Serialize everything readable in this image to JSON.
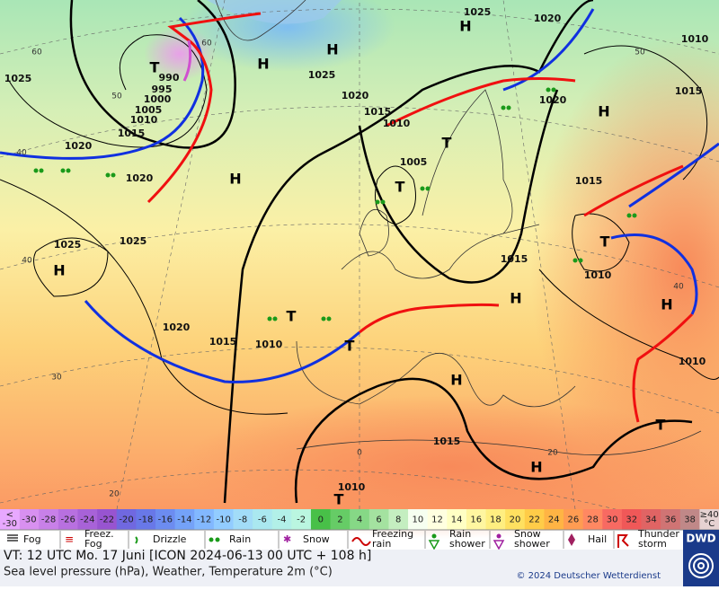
{
  "map": {
    "isobar_labels": [
      "1025",
      "990",
      "995",
      "1000",
      "1005",
      "1010",
      "1015",
      "1020",
      "1020",
      "1025",
      "1025",
      "1025",
      "1020",
      "1015",
      "1010",
      "1005",
      "1025",
      "1020",
      "1010",
      "1015",
      "1020",
      "1015",
      "1015",
      "1010",
      "1020",
      "1015",
      "1010",
      "1010",
      "1015",
      "1010"
    ],
    "grid_labels": [
      "60",
      "50",
      "40",
      "40",
      "30",
      "20",
      "0",
      "20",
      "40",
      "50",
      "60"
    ],
    "pressure_centers": [
      "H",
      "T",
      "H",
      "H",
      "H",
      "T",
      "T",
      "H",
      "T",
      "T",
      "H",
      "H",
      "H",
      "T",
      "H",
      "H",
      "T",
      "T"
    ]
  },
  "color_scale": {
    "low": [
      "<",
      "-30"
    ],
    "high": [
      "≥40",
      "°C"
    ],
    "low_color": "#e8a8ff",
    "high_color": "#e6d2d2",
    "steps": [
      {
        "label": "-30",
        "color": "#d890f0"
      },
      {
        "label": "-28",
        "color": "#c880e8"
      },
      {
        "label": "-26",
        "color": "#b870e0"
      },
      {
        "label": "-24",
        "color": "#a862d8"
      },
      {
        "label": "-22",
        "color": "#9854d0"
      },
      {
        "label": "-20",
        "color": "#7068e0"
      },
      {
        "label": "-18",
        "color": "#6878e8"
      },
      {
        "label": "-16",
        "color": "#6c8cf0"
      },
      {
        "label": "-14",
        "color": "#74a2f8"
      },
      {
        "label": "-12",
        "color": "#82b8ff"
      },
      {
        "label": "-10",
        "color": "#92ccff"
      },
      {
        "label": "-8",
        "color": "#a2dcf8"
      },
      {
        "label": "-6",
        "color": "#aae8f0"
      },
      {
        "label": "-4",
        "color": "#b2f0e8"
      },
      {
        "label": "-2",
        "color": "#baf6e0"
      },
      {
        "label": "0",
        "color": "#48c048"
      },
      {
        "label": "2",
        "color": "#66cc66"
      },
      {
        "label": "4",
        "color": "#86d886"
      },
      {
        "label": "6",
        "color": "#a4e2a0"
      },
      {
        "label": "8",
        "color": "#c4eec0"
      },
      {
        "label": "10",
        "color": "#f6fff0"
      },
      {
        "label": "12",
        "color": "#ffffe0"
      },
      {
        "label": "14",
        "color": "#ffffc4"
      },
      {
        "label": "16",
        "color": "#fff6a0"
      },
      {
        "label": "18",
        "color": "#ffee80"
      },
      {
        "label": "20",
        "color": "#ffe060"
      },
      {
        "label": "22",
        "color": "#ffcc48"
      },
      {
        "label": "24",
        "color": "#ffb444"
      },
      {
        "label": "26",
        "color": "#ff9c52"
      },
      {
        "label": "28",
        "color": "#ff8862"
      },
      {
        "label": "30",
        "color": "#f86a62"
      },
      {
        "label": "32",
        "color": "#f05858"
      },
      {
        "label": "34",
        "color": "#e06464"
      },
      {
        "label": "36",
        "color": "#d07474"
      },
      {
        "label": "38",
        "color": "#c08888"
      }
    ]
  },
  "legend": [
    {
      "lines": [
        "Fog"
      ]
    },
    {
      "lines": [
        "Freez.",
        "Fog"
      ]
    },
    {
      "lines": [
        "Drizzle"
      ]
    },
    {
      "lines": [
        "Rain"
      ]
    },
    {
      "lines": [
        "Snow"
      ]
    },
    {
      "lines": [
        "Freezing",
        "rain"
      ]
    },
    {
      "lines": [
        "Rain",
        "shower"
      ]
    },
    {
      "lines": [
        "Snow",
        "shower"
      ]
    },
    {
      "lines": [
        "Hail"
      ]
    },
    {
      "lines": [
        "Thunder",
        "storm"
      ]
    }
  ],
  "footer": {
    "valid_time": "VT: 12 UTC Mo.  17 Juni [ICON 2024-06-13  00 UTC + 108 h]",
    "description": "Sea level pressure (hPa), Weather, Temperature 2m (°C)",
    "copyright": "© 2024 Deutscher Wetterdienst",
    "logo": "DWD"
  }
}
